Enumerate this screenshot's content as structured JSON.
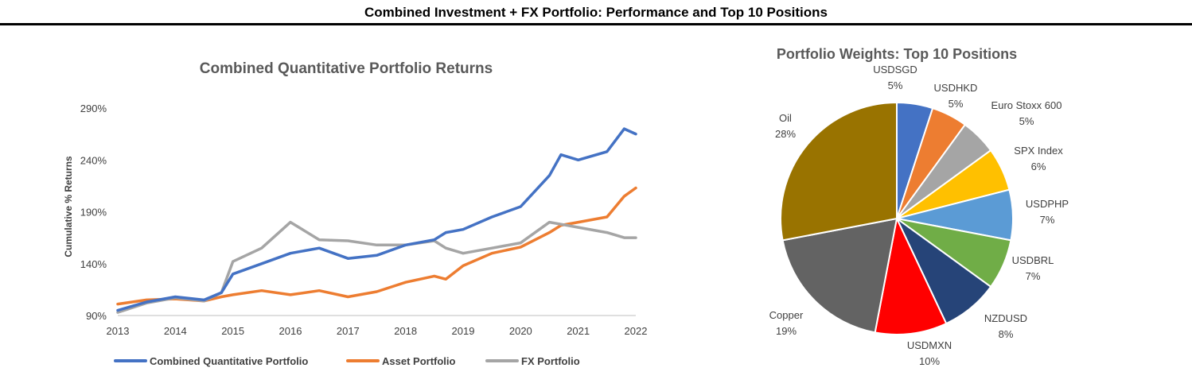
{
  "header": {
    "title": "Combined Investment + FX Portfolio: Performance and Top 10 Positions"
  },
  "chart_data": [
    {
      "type": "line",
      "title": "Combined Quantitative Portfolio Returns",
      "xlabel": "",
      "ylabel": "Cumulative % Returns",
      "x": [
        2013.0,
        2013.5,
        2014.0,
        2014.5,
        2014.8,
        2015.0,
        2015.5,
        2016.0,
        2016.5,
        2017.0,
        2017.5,
        2018.0,
        2018.5,
        2018.7,
        2019.0,
        2019.5,
        2020.0,
        2020.5,
        2020.7,
        2021.0,
        2021.5,
        2021.8,
        2022.0
      ],
      "xlim": [
        2013,
        2022
      ],
      "xticks": [
        "2013",
        "2014",
        "2015",
        "2016",
        "2017",
        "2018",
        "2019",
        "2020",
        "2021",
        "2022"
      ],
      "ylim": [
        90,
        290
      ],
      "yticks": [
        "90%",
        "140%",
        "190%",
        "240%",
        "290%"
      ],
      "grid": false,
      "legend_position": "bottom",
      "series": [
        {
          "name": "Combined Quantitative Portfolio",
          "color": "#4472C4",
          "values": [
            95,
            103,
            108,
            105,
            112,
            130,
            140,
            150,
            155,
            145,
            148,
            158,
            163,
            170,
            173,
            185,
            195,
            225,
            245,
            240,
            248,
            270,
            265
          ]
        },
        {
          "name": "Asset Portfolio",
          "color": "#ED7D31",
          "values": [
            101,
            105,
            106,
            104,
            108,
            110,
            114,
            110,
            114,
            108,
            113,
            122,
            128,
            125,
            138,
            150,
            156,
            170,
            177,
            180,
            185,
            205,
            213
          ]
        },
        {
          "name": "FX Portfolio",
          "color": "#A5A5A5",
          "values": [
            93,
            102,
            107,
            104,
            112,
            142,
            155,
            180,
            163,
            162,
            158,
            158,
            162,
            155,
            150,
            155,
            160,
            180,
            178,
            175,
            170,
            165,
            165
          ]
        }
      ]
    },
    {
      "type": "pie",
      "title": "Portfolio Weights: Top 10 Positions",
      "slices": [
        {
          "label": "USDSGD",
          "value": 5,
          "display": "5%",
          "color": "#4472C4"
        },
        {
          "label": "USDHKD",
          "value": 5,
          "display": "5%",
          "color": "#ED7D31"
        },
        {
          "label": "Euro Stoxx 600",
          "value": 5,
          "display": "5%",
          "color": "#A5A5A5"
        },
        {
          "label": "SPX Index",
          "value": 6,
          "display": "6%",
          "color": "#FFC000"
        },
        {
          "label": "USDPHP",
          "value": 7,
          "display": "7%",
          "color": "#5B9BD5"
        },
        {
          "label": "USDBRL",
          "value": 7,
          "display": "7%",
          "color": "#70AD47"
        },
        {
          "label": "NZDUSD",
          "value": 8,
          "display": "8%",
          "color": "#264478"
        },
        {
          "label": "USDMXN",
          "value": 10,
          "display": "10%",
          "color": "#FF0000"
        },
        {
          "label": "Copper",
          "value": 19,
          "display": "19%",
          "color": "#636363"
        },
        {
          "label": "Oil",
          "value": 28,
          "display": "28%",
          "color": "#997300"
        }
      ]
    }
  ]
}
